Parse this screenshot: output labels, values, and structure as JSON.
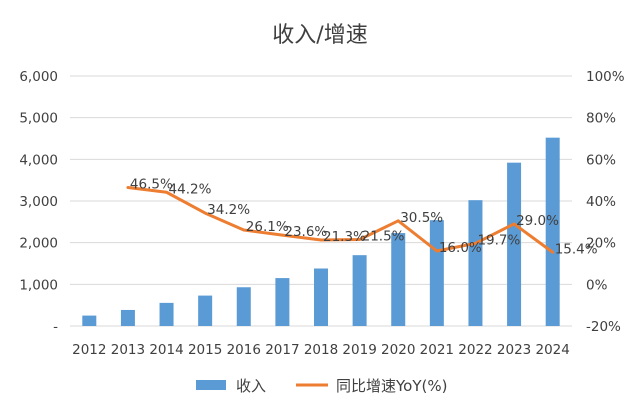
{
  "chart_data": {
    "type": "bar",
    "title": "收入/增速",
    "categories": [
      "2012",
      "2013",
      "2014",
      "2015",
      "2016",
      "2017",
      "2018",
      "2019",
      "2020",
      "2021",
      "2022",
      "2023",
      "2024"
    ],
    "series": [
      {
        "name": "收入",
        "type": "bar",
        "axis": "left",
        "color": "#5b9bd5",
        "values": [
          250,
          385,
          555,
          730,
          930,
          1150,
          1380,
          1700,
          2230,
          2540,
          3020,
          3920,
          4520
        ]
      },
      {
        "name": "同比增速YoY(%)",
        "type": "line",
        "axis": "right",
        "color": "#ed7d31",
        "values": [
          null,
          46.5,
          44.2,
          34.2,
          26.1,
          23.6,
          21.3,
          21.5,
          30.5,
          16.0,
          19.7,
          29.0,
          15.4
        ],
        "labels": [
          "",
          "46.5%",
          "44.2%",
          "34.2%",
          "26.1%",
          "23.6%",
          "21.3%",
          "21.5%",
          "30.5%",
          "16.0%",
          "19.7%",
          "29.0%",
          "15.4%"
        ]
      }
    ],
    "y_left": {
      "ylim": [
        0,
        6000
      ],
      "ticks": [
        0,
        1000,
        2000,
        3000,
        4000,
        5000,
        6000
      ],
      "tick_labels": [
        "-",
        "1,000",
        "2,000",
        "3,000",
        "4,000",
        "5,000",
        "6,000"
      ]
    },
    "y_right": {
      "ylim": [
        -20,
        100
      ],
      "ticks": [
        -20,
        0,
        20,
        40,
        60,
        80,
        100
      ],
      "tick_labels": [
        "-20%",
        "0%",
        "20%",
        "40%",
        "60%",
        "80%",
        "100%"
      ]
    },
    "grid": true,
    "legend_position": "bottom"
  }
}
